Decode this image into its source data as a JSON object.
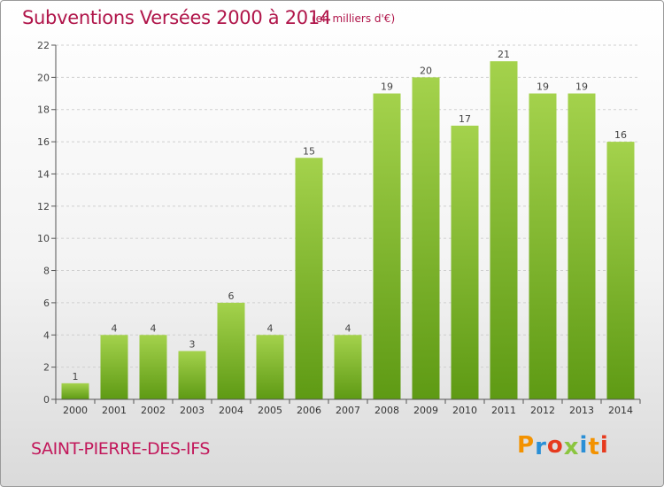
{
  "header": {
    "title": "Subventions Versées 2000 à 2014",
    "unit": "(en milliers d'€)"
  },
  "footer": {
    "commune": "SAINT-PIERRE-DES-IFS",
    "logo_text": "Proxiti",
    "logo_colors": [
      "#f39200",
      "#2a8fd6",
      "#e63a1e",
      "#8bc53f",
      "#2a8fd6",
      "#f39200",
      "#e63a1e"
    ]
  },
  "colors": {
    "title": "#b0154a",
    "bar_top": "#a4d24c",
    "bar_bottom": "#5e9a14",
    "axis": "#555555",
    "grid": "#cfcfcf"
  },
  "chart_data": {
    "type": "bar",
    "categories": [
      "2000",
      "2001",
      "2002",
      "2003",
      "2004",
      "2005",
      "2006",
      "2007",
      "2008",
      "2009",
      "2010",
      "2011",
      "2012",
      "2013",
      "2014"
    ],
    "values": [
      1,
      4,
      4,
      3,
      6,
      4,
      15,
      4,
      19,
      20,
      17,
      21,
      19,
      19,
      16
    ],
    "yticks": [
      0,
      2,
      4,
      6,
      8,
      10,
      12,
      14,
      16,
      18,
      20,
      22
    ],
    "ylim": [
      0,
      22
    ],
    "grid": "horizontal dashed",
    "title": "Subventions Versées 2000 à 2014",
    "xlabel": "",
    "ylabel": ""
  }
}
